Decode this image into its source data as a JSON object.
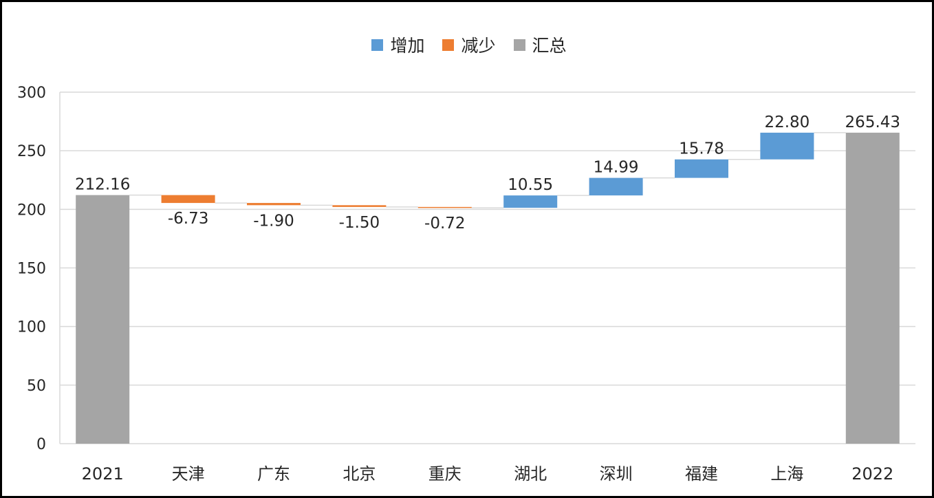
{
  "chart_data": {
    "type": "waterfall",
    "legend": [
      {
        "key": "increase",
        "label": "增加",
        "color": "#5B9BD5"
      },
      {
        "key": "decrease",
        "label": "减少",
        "color": "#ED7D31"
      },
      {
        "key": "total",
        "label": "汇总",
        "color": "#A5A5A5"
      }
    ],
    "categories": [
      "2021",
      "天津",
      "广东",
      "北京",
      "重庆",
      "湖北",
      "深圳",
      "福建",
      "上海",
      "2022"
    ],
    "values": [
      212.16,
      -6.73,
      -1.9,
      -1.5,
      -0.72,
      10.55,
      14.99,
      15.78,
      22.8,
      265.43
    ],
    "kinds": [
      "total",
      "decrease",
      "decrease",
      "decrease",
      "decrease",
      "increase",
      "increase",
      "increase",
      "increase",
      "total"
    ],
    "data_labels": [
      "212.16",
      "-6.73",
      "-1.90",
      "-1.50",
      "-0.72",
      "10.55",
      "14.99",
      "15.78",
      "22.80",
      "265.43"
    ],
    "ylim": [
      0,
      300
    ],
    "yticks": [
      0,
      50,
      100,
      150,
      200,
      250,
      300
    ],
    "grid": true,
    "legend_position": "top",
    "title": "",
    "xlabel": "",
    "ylabel": ""
  }
}
